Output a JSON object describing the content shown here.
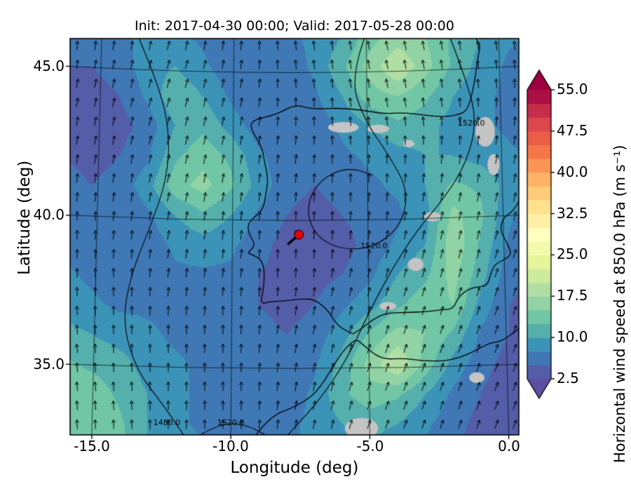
{
  "chart_data": {
    "type": "heatmap",
    "title": "Init: 2017-04-30 00:00; Valid: 2017-05-28 00:00",
    "xlabel": "Longitude (deg)",
    "ylabel": "Latitude (deg)",
    "xlim": [
      -15.78,
      0.36
    ],
    "ylim": [
      32.63,
      45.93
    ],
    "xticks": [
      -15.0,
      -10.0,
      -5.0,
      0.0
    ],
    "xtick_labels": [
      "-15.0",
      "-10.0",
      "-5.0",
      "0.0"
    ],
    "yticks": [
      35.0,
      40.0,
      45.0
    ],
    "ytick_labels": [
      "35.0",
      "40.0",
      "45.0"
    ],
    "grid_on": true,
    "colorbar": {
      "label": "Horizontal wind speed at 850.0 hPa (m s⁻¹)",
      "ticks": [
        2.5,
        10.0,
        17.5,
        25.0,
        32.5,
        40.0,
        47.5,
        55.0
      ],
      "tick_labels": [
        "2.5",
        "10.0",
        "17.5",
        "25.0",
        "32.5",
        "40.0",
        "47.5",
        "55.0"
      ],
      "extend": "both"
    },
    "value_range": [
      2.5,
      55.0
    ],
    "levels_step": 2.5,
    "colormap_stops": [
      [
        0.0,
        "#5e4fa2"
      ],
      [
        0.1,
        "#3288bd"
      ],
      [
        0.2,
        "#66c2a5"
      ],
      [
        0.3,
        "#abdda4"
      ],
      [
        0.4,
        "#e6f598"
      ],
      [
        0.5,
        "#ffffbf"
      ],
      [
        0.6,
        "#fee08b"
      ],
      [
        0.7,
        "#fdae61"
      ],
      [
        0.8,
        "#f46d43"
      ],
      [
        0.9,
        "#d53e4f"
      ],
      [
        1.0,
        "#9e0142"
      ]
    ],
    "grid": {
      "lon": [
        -16,
        -15,
        -14,
        -13,
        -12,
        -11,
        -10,
        -9,
        -8,
        -7,
        -6,
        -5,
        -4,
        -3,
        -2,
        -1,
        0,
        1
      ],
      "lat": [
        46,
        45,
        44,
        43,
        42,
        41,
        40,
        39,
        38,
        37,
        36,
        35,
        34,
        33,
        32
      ],
      "speed": [
        [
          6,
          6,
          7,
          8,
          8,
          7,
          6,
          6,
          7,
          8,
          10,
          14,
          16,
          15,
          12,
          10,
          8,
          7
        ],
        [
          5,
          5,
          6,
          9,
          10,
          8,
          6,
          5,
          6,
          8,
          12,
          16,
          20,
          16,
          12,
          9,
          7,
          6
        ],
        [
          4,
          4,
          5,
          8,
          12,
          10,
          7,
          5,
          5,
          7,
          10,
          14,
          15,
          13,
          10,
          8,
          7,
          6
        ],
        [
          4,
          3,
          4,
          6,
          10,
          12,
          9,
          6,
          5,
          6,
          8,
          10,
          12,
          11,
          9,
          8,
          7,
          6
        ],
        [
          5,
          4,
          5,
          7,
          12,
          14,
          12,
          8,
          6,
          6,
          7,
          8,
          9,
          10,
          10,
          9,
          8,
          7
        ],
        [
          6,
          5,
          6,
          9,
          14,
          16,
          13,
          9,
          6,
          5,
          6,
          7,
          8,
          10,
          13,
          12,
          9,
          7
        ],
        [
          6,
          5,
          5,
          7,
          10,
          12,
          10,
          7,
          5,
          4,
          5,
          6,
          7,
          9,
          16,
          13,
          8,
          6
        ],
        [
          7,
          6,
          5,
          6,
          8,
          9,
          8,
          6,
          4,
          3,
          4,
          6,
          8,
          10,
          17,
          12,
          7,
          5
        ],
        [
          8,
          7,
          6,
          6,
          7,
          7,
          7,
          5,
          4,
          4,
          5,
          7,
          10,
          12,
          16,
          11,
          6,
          4
        ],
        [
          9,
          8,
          7,
          7,
          7,
          6,
          6,
          5,
          4,
          5,
          7,
          9,
          12,
          14,
          15,
          9,
          5,
          4
        ],
        [
          11,
          10,
          9,
          8,
          7,
          6,
          6,
          6,
          5,
          6,
          9,
          13,
          16,
          15,
          12,
          7,
          5,
          4
        ],
        [
          13,
          12,
          11,
          9,
          8,
          7,
          6,
          6,
          6,
          7,
          11,
          16,
          20,
          14,
          9,
          6,
          4,
          3
        ],
        [
          14,
          14,
          12,
          10,
          8,
          7,
          6,
          6,
          6,
          8,
          12,
          14,
          13,
          10,
          7,
          5,
          3,
          3
        ],
        [
          13,
          15,
          13,
          10,
          8,
          7,
          7,
          7,
          7,
          8,
          10,
          11,
          10,
          8,
          6,
          4,
          3,
          3
        ],
        [
          12,
          14,
          13,
          10,
          9,
          8,
          7,
          7,
          7,
          8,
          9,
          9,
          8,
          7,
          5,
          4,
          3,
          3
        ]
      ]
    },
    "wind_uv": {
      "lon": [
        -16,
        -14,
        -12,
        -10,
        -8,
        -6,
        -4,
        -2,
        0,
        1
      ],
      "lat": [
        46,
        44,
        42,
        40,
        38,
        36,
        34,
        32
      ],
      "u": [
        [
          0,
          1,
          2,
          1,
          -1,
          -2,
          -3,
          -2,
          -1,
          0
        ],
        [
          1,
          2,
          3,
          2,
          0,
          -1,
          -2,
          -1,
          0,
          1
        ],
        [
          1,
          2,
          3,
          2,
          1,
          0,
          0,
          1,
          2,
          2
        ],
        [
          0,
          1,
          2,
          1,
          0,
          0,
          1,
          2,
          3,
          3
        ],
        [
          0,
          0,
          1,
          1,
          0,
          1,
          2,
          3,
          4,
          3
        ],
        [
          -1,
          0,
          0,
          0,
          1,
          2,
          4,
          5,
          4,
          2
        ],
        [
          -1,
          -1,
          0,
          0,
          1,
          3,
          5,
          4,
          3,
          1
        ],
        [
          0,
          0,
          0,
          0,
          1,
          2,
          4,
          3,
          2,
          1
        ]
      ],
      "v": [
        [
          6,
          7,
          8,
          9,
          10,
          12,
          14,
          12,
          9,
          7
        ],
        [
          6,
          8,
          10,
          9,
          8,
          9,
          10,
          9,
          8,
          7
        ],
        [
          7,
          10,
          12,
          10,
          7,
          6,
          7,
          9,
          11,
          9
        ],
        [
          8,
          9,
          10,
          8,
          5,
          4,
          6,
          9,
          12,
          10
        ],
        [
          9,
          8,
          8,
          7,
          5,
          5,
          8,
          11,
          13,
          9
        ],
        [
          10,
          9,
          8,
          7,
          6,
          8,
          12,
          14,
          11,
          7
        ],
        [
          12,
          11,
          9,
          8,
          7,
          10,
          13,
          11,
          8,
          5
        ],
        [
          13,
          12,
          10,
          9,
          8,
          10,
          12,
          9,
          6,
          4
        ]
      ]
    },
    "coastlines": [
      [
        [
          -5.6,
          36.02
        ],
        [
          -6.04,
          36.19
        ],
        [
          -6.35,
          36.55
        ],
        [
          -6.45,
          36.75
        ],
        [
          -6.95,
          37.17
        ],
        [
          -7.42,
          37.2
        ],
        [
          -8.15,
          37.12
        ],
        [
          -8.6,
          37.1
        ],
        [
          -8.95,
          37.02
        ],
        [
          -8.8,
          37.6
        ],
        [
          -8.8,
          38.42
        ],
        [
          -9.2,
          38.68
        ],
        [
          -9.42,
          38.72
        ],
        [
          -9.1,
          39.0
        ],
        [
          -9.35,
          39.36
        ],
        [
          -9.4,
          39.76
        ],
        [
          -8.85,
          40.15
        ],
        [
          -8.75,
          40.65
        ],
        [
          -8.65,
          41.2
        ],
        [
          -8.8,
          41.85
        ],
        [
          -8.88,
          42.3
        ],
        [
          -9.3,
          42.92
        ],
        [
          -9.22,
          43.2
        ],
        [
          -8.35,
          43.38
        ],
        [
          -7.7,
          43.72
        ],
        [
          -7.05,
          43.56
        ],
        [
          -6.2,
          43.6
        ],
        [
          -5.3,
          43.54
        ],
        [
          -4.5,
          43.4
        ],
        [
          -3.8,
          43.45
        ],
        [
          -3.0,
          43.35
        ],
        [
          -2.3,
          43.3
        ],
        [
          -1.8,
          43.38
        ],
        [
          -1.5,
          43.52
        ],
        [
          -1.32,
          44.05
        ],
        [
          -1.2,
          44.68
        ],
        [
          -1.1,
          45.35
        ],
        [
          -1.02,
          45.72
        ],
        [
          -1.2,
          45.95
        ]
      ],
      [
        [
          -5.6,
          36.02
        ],
        [
          -5.33,
          36.16
        ],
        [
          -4.9,
          36.5
        ],
        [
          -4.42,
          36.72
        ],
        [
          -3.7,
          36.74
        ],
        [
          -3.0,
          36.76
        ],
        [
          -2.42,
          36.83
        ],
        [
          -2.0,
          36.85
        ],
        [
          -1.85,
          37.2
        ],
        [
          -1.62,
          37.42
        ],
        [
          -1.3,
          37.58
        ],
        [
          -0.78,
          37.62
        ],
        [
          -0.66,
          38.0
        ],
        [
          -0.52,
          38.35
        ],
        [
          -0.1,
          38.54
        ],
        [
          0.1,
          38.7
        ],
        [
          -0.05,
          39.05
        ],
        [
          -0.32,
          39.5
        ],
        [
          -0.2,
          39.92
        ],
        [
          0.08,
          40.08
        ],
        [
          0.32,
          40.38
        ],
        [
          0.45,
          40.65
        ]
      ],
      [
        [
          -9.1,
          32.62
        ],
        [
          -8.6,
          33.26
        ],
        [
          -7.6,
          33.6
        ],
        [
          -6.9,
          34.06
        ],
        [
          -6.35,
          34.88
        ],
        [
          -5.95,
          35.47
        ],
        [
          -5.5,
          35.86
        ],
        [
          -5.28,
          35.68
        ],
        [
          -4.6,
          35.16
        ],
        [
          -3.75,
          35.2
        ],
        [
          -3.1,
          35.12
        ],
        [
          -2.4,
          35.1
        ],
        [
          -1.75,
          35.22
        ],
        [
          -1.2,
          35.46
        ],
        [
          -0.68,
          35.72
        ],
        [
          -0.3,
          35.76
        ],
        [
          0.12,
          36.02
        ],
        [
          0.45,
          36.25
        ]
      ]
    ],
    "height_contours": [
      {
        "label": "1480.0",
        "points": [
          [
            -13.3,
            45.93
          ],
          [
            -12.6,
            44.4
          ],
          [
            -12.2,
            42.8
          ],
          [
            -12.3,
            41.2
          ],
          [
            -12.9,
            39.6
          ],
          [
            -13.6,
            38.0
          ],
          [
            -13.9,
            36.4
          ],
          [
            -13.4,
            34.8
          ],
          [
            -12.4,
            33.6
          ],
          [
            -11.7,
            32.63
          ]
        ]
      },
      {
        "label": "1520.0",
        "points": [
          [
            -5.2,
            45.93
          ],
          [
            -5.7,
            44.6
          ],
          [
            -5.2,
            43.2
          ],
          [
            -4.3,
            42.0
          ],
          [
            -3.6,
            40.8
          ],
          [
            -3.9,
            39.6
          ],
          [
            -4.9,
            38.9
          ],
          [
            -6.1,
            38.85
          ],
          [
            -7.0,
            39.35
          ],
          [
            -7.3,
            40.3
          ],
          [
            -6.8,
            41.2
          ],
          [
            -5.8,
            41.62
          ],
          [
            -4.9,
            41.35
          ]
        ]
      },
      {
        "label": "1520.0",
        "points": [
          [
            -2.1,
            45.93
          ],
          [
            -1.55,
            44.6
          ],
          [
            -1.15,
            43.2
          ],
          [
            -1.5,
            41.8
          ],
          [
            -2.3,
            40.6
          ],
          [
            -3.3,
            39.5
          ],
          [
            -4.2,
            38.2
          ],
          [
            -5.0,
            36.8
          ],
          [
            -5.8,
            35.2
          ],
          [
            -6.8,
            33.8
          ],
          [
            -7.95,
            32.63
          ]
        ]
      },
      {
        "label": "1520.0",
        "points": [
          [
            -11.1,
            32.63
          ],
          [
            -10.3,
            33.05
          ],
          [
            -9.4,
            32.95
          ],
          [
            -8.75,
            32.63
          ]
        ]
      }
    ],
    "contour_labels": [
      {
        "text": "1480.0",
        "lon": -12.3,
        "lat": 32.95
      },
      {
        "text": "1520.0",
        "lon": -10.0,
        "lat": 32.95
      },
      {
        "text": "1520.0",
        "lon": -4.85,
        "lat": 38.9
      },
      {
        "text": "1520.0",
        "lon": -1.35,
        "lat": 43.0
      }
    ],
    "masked_regions": [
      [
        -5.95,
        42.95,
        0.55,
        0.18
      ],
      [
        -4.7,
        42.9,
        0.4,
        0.14
      ],
      [
        -0.85,
        42.8,
        0.35,
        0.5
      ],
      [
        -0.55,
        41.7,
        0.22,
        0.35
      ],
      [
        -2.75,
        39.95,
        0.3,
        0.16
      ],
      [
        -3.35,
        38.35,
        0.28,
        0.22
      ],
      [
        -4.35,
        36.95,
        0.3,
        0.14
      ],
      [
        -5.3,
        32.85,
        0.6,
        0.35
      ],
      [
        -1.15,
        34.55,
        0.28,
        0.18
      ],
      [
        -3.6,
        42.4,
        0.2,
        0.12
      ]
    ],
    "masked_color": "#c4c4c4",
    "marker": {
      "lon": -7.55,
      "lat": 39.35,
      "color": "#e8000b"
    }
  }
}
